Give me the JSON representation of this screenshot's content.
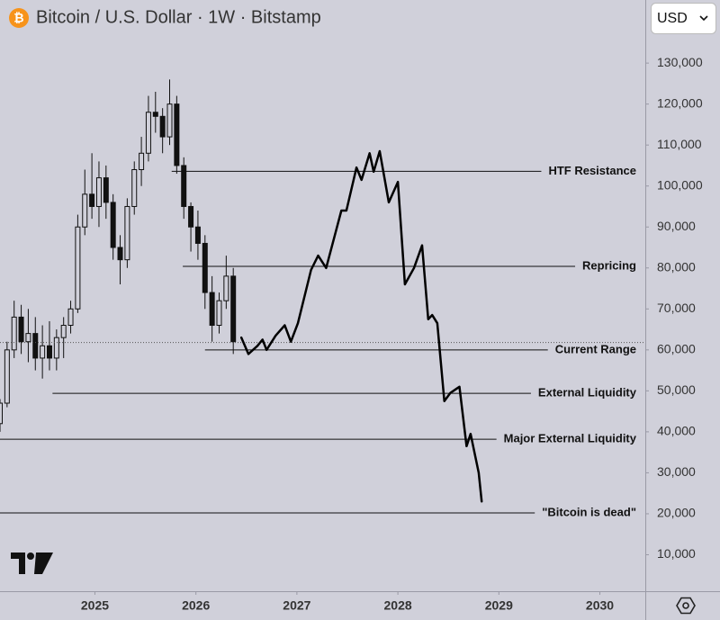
{
  "chart_data": {
    "type": "candlestick",
    "title": "Bitcoin / U.S. Dollar · 1W · Bitstamp",
    "currency": "USD",
    "xlim": [
      2024.06,
      2030.45
    ],
    "xticks": [
      2025,
      2026,
      2027,
      2028,
      2029,
      2030
    ],
    "ylim": [
      1100,
      145400
    ],
    "yticks": [
      {
        "value": 10000,
        "label": "10,000"
      },
      {
        "value": 20000,
        "label": "20,000"
      },
      {
        "value": 30000,
        "label": "30,000"
      },
      {
        "value": 40000,
        "label": "40,000"
      },
      {
        "value": 50000,
        "label": "50,000"
      },
      {
        "value": 60000,
        "label": "60,000"
      },
      {
        "value": 70000,
        "label": "70,000"
      },
      {
        "value": 80000,
        "label": "80,000"
      },
      {
        "value": 90000,
        "label": "90,000"
      },
      {
        "value": 100000,
        "label": "100,000"
      },
      {
        "value": 110000,
        "label": "110,000"
      },
      {
        "value": 120000,
        "label": "120,000"
      },
      {
        "value": 130000,
        "label": "130,000"
      }
    ],
    "candles": {
      "color": "#111111",
      "x": [
        2024.06,
        2024.13,
        2024.2,
        2024.27,
        2024.34,
        2024.41,
        2024.48,
        2024.55,
        2024.62,
        2024.69,
        2024.76,
        2024.83,
        2024.9,
        2024.97,
        2025.04,
        2025.11,
        2025.18,
        2025.25,
        2025.32,
        2025.39,
        2025.46,
        2025.53,
        2025.6,
        2025.67,
        2025.74,
        2025.81,
        2025.88,
        2025.95,
        2026.02,
        2026.09,
        2026.16,
        2026.23,
        2026.3,
        2026.37
      ],
      "open": [
        42000,
        47000,
        60000,
        68000,
        62000,
        64000,
        58000,
        61000,
        58000,
        63000,
        66000,
        70000,
        90000,
        98000,
        95000,
        102000,
        96000,
        85000,
        82000,
        95000,
        104000,
        108000,
        118000,
        117000,
        112000,
        120000,
        105000,
        95000,
        90000,
        86000,
        74000,
        66000,
        72000,
        78000
      ],
      "high": [
        48000,
        62000,
        72000,
        71000,
        70000,
        68000,
        66000,
        67000,
        65000,
        68000,
        72000,
        93000,
        104000,
        108000,
        106000,
        105000,
        98000,
        88000,
        97000,
        106000,
        112000,
        122000,
        123000,
        119000,
        126000,
        122000,
        107000,
        96000,
        94000,
        88000,
        78000,
        74000,
        83000,
        80000
      ],
      "low": [
        40000,
        46000,
        58000,
        59000,
        57000,
        55000,
        53000,
        55000,
        55000,
        58000,
        64000,
        69000,
        88000,
        92000,
        90000,
        92000,
        82000,
        76000,
        80000,
        93000,
        100000,
        106000,
        113000,
        108000,
        110000,
        103000,
        92000,
        84000,
        82000,
        70000,
        62000,
        64000,
        70000,
        59000
      ],
      "close": [
        47000,
        60000,
        68000,
        62000,
        64000,
        58000,
        61000,
        58000,
        63000,
        66000,
        70000,
        90000,
        98000,
        95000,
        102000,
        96000,
        85000,
        82000,
        95000,
        104000,
        108000,
        118000,
        117000,
        112000,
        120000,
        105000,
        95000,
        90000,
        86000,
        74000,
        66000,
        72000,
        78000,
        62000
      ]
    },
    "last_price": 61800,
    "series": [
      {
        "color": "#000000",
        "x": [
          2026.45,
          2026.52,
          2026.61,
          2026.66,
          2026.7,
          2026.79,
          2026.88,
          2026.94,
          2027.01,
          2027.14,
          2027.21,
          2027.29,
          2027.44,
          2027.49,
          2027.59,
          2027.64,
          2027.72,
          2027.76,
          2027.82,
          2027.91,
          2028.0,
          2028.07,
          2028.16,
          2028.24,
          2028.3,
          2028.34,
          2028.39,
          2028.46,
          2028.52,
          2028.61,
          2028.68,
          2028.72,
          2028.8,
          2028.83
        ],
        "values": [
          63000,
          59000,
          61000,
          62500,
          60000,
          63500,
          66000,
          62000,
          66500,
          79500,
          83000,
          80000,
          94000,
          94000,
          104500,
          101500,
          108000,
          103500,
          108500,
          96000,
          101000,
          76000,
          80000,
          85500,
          67500,
          68500,
          66500,
          47500,
          49500,
          51000,
          36500,
          39500,
          30000,
          23000
        ]
      }
    ],
    "levels": [
      {
        "label": "HTF Resistance",
        "value": 103600,
        "start": 2025.76
      },
      {
        "label": "Repricing",
        "value": 80400,
        "start": 2025.87
      },
      {
        "label": "Current Range",
        "value": 60000,
        "start": 2026.09
      },
      {
        "label": "External Liquidity",
        "value": 49400,
        "start": 2024.58
      },
      {
        "label": "Major External Liquidity",
        "value": 38200,
        "start": 2024.06
      },
      {
        "label": "\"Bitcoin is dead\"",
        "value": 20200,
        "start": 2024.06
      }
    ]
  }
}
